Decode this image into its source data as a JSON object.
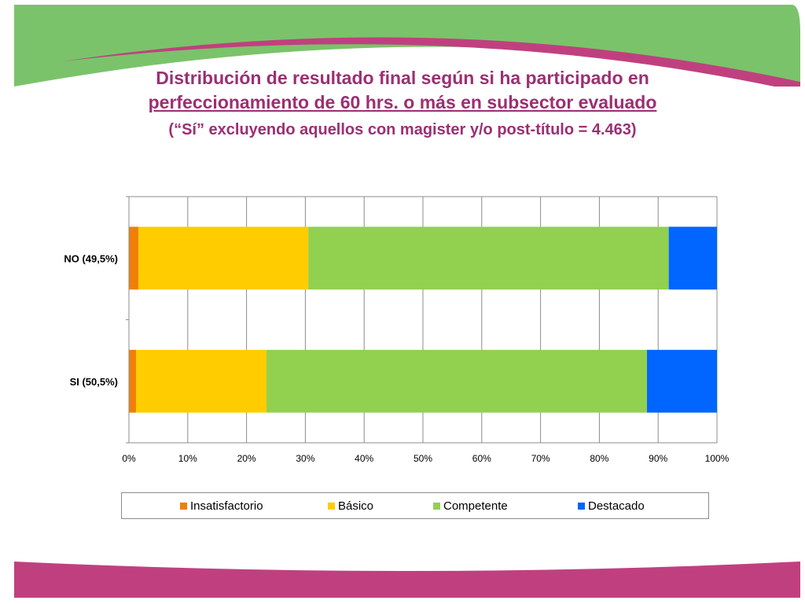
{
  "slide": {
    "title_line1": "Distribución de resultado final según si ha participado en",
    "title_line2": "perfeccionamiento de 60 hrs. o más en subsector evaluado",
    "title_line3": "(“Sí” excluyendo aquellos con magister y/o post-título = 4.463)",
    "colors": {
      "title": "#9b2f73",
      "band_green": "#7ac36a",
      "band_pink": "#c0407f"
    }
  },
  "chart_data": {
    "type": "bar",
    "orientation": "horizontal",
    "stacked": true,
    "percent": true,
    "categories": [
      "NO (49,5%)",
      "SI (50,5%)"
    ],
    "series": [
      {
        "name": "Insatisfactorio",
        "color": "#f07f09",
        "values": [
          1.6,
          1.2
        ]
      },
      {
        "name": "Básico",
        "color": "#ffcc00",
        "values": [
          28.9,
          22.2
        ]
      },
      {
        "name": "Competente",
        "color": "#92d050",
        "values": [
          61.3,
          64.7
        ]
      },
      {
        "name": "Destacado",
        "color": "#0066ff",
        "values": [
          8.2,
          11.9
        ]
      }
    ],
    "xlim": [
      0,
      100
    ],
    "xticks": [
      "0%",
      "10%",
      "20%",
      "30%",
      "40%",
      "50%",
      "60%",
      "70%",
      "80%",
      "90%",
      "100%"
    ],
    "grid": true,
    "legend": "bottom"
  }
}
